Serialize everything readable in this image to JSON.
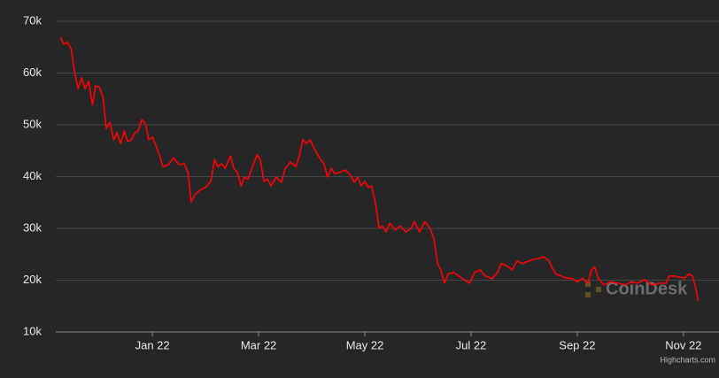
{
  "chart_data": {
    "type": "line",
    "x": [
      -1.73,
      -1.67,
      -1.6,
      -1.53,
      -1.47,
      -1.4,
      -1.33,
      -1.27,
      -1.2,
      -1.13,
      -1.07,
      -1,
      -0.93,
      -0.87,
      -0.8,
      -0.73,
      -0.67,
      -0.6,
      -0.53,
      -0.47,
      -0.4,
      -0.33,
      -0.27,
      -0.2,
      -0.13,
      -0.07,
      0,
      0.07,
      0.13,
      0.2,
      0.3,
      0.4,
      0.5,
      0.6,
      0.67,
      0.73,
      0.8,
      0.9,
      1,
      1.1,
      1.17,
      1.23,
      1.3,
      1.37,
      1.47,
      1.53,
      1.6,
      1.67,
      1.73,
      1.8,
      1.9,
      1.97,
      2.03,
      2.1,
      2.17,
      2.23,
      2.33,
      2.43,
      2.5,
      2.6,
      2.7,
      2.77,
      2.83,
      2.9,
      2.97,
      3.07,
      3.17,
      3.23,
      3.3,
      3.37,
      3.43,
      3.53,
      3.63,
      3.73,
      3.8,
      3.87,
      3.93,
      4,
      4.07,
      4.13,
      4.2,
      4.27,
      4.33,
      4.4,
      4.47,
      4.57,
      4.67,
      4.77,
      4.87,
      4.93,
      5.03,
      5.13,
      5.23,
      5.3,
      5.37,
      5.43,
      5.5,
      5.57,
      5.67,
      5.77,
      5.87,
      5.97,
      6.07,
      6.17,
      6.27,
      6.4,
      6.5,
      6.57,
      6.67,
      6.77,
      6.87,
      6.97,
      7.07,
      7.17,
      7.27,
      7.37,
      7.47,
      7.53,
      7.6,
      7.7,
      7.8,
      7.9,
      8,
      8.1,
      8.2,
      8.27,
      8.33,
      8.4,
      8.5,
      8.63,
      8.77,
      8.9,
      9.03,
      9.13,
      9.27,
      9.4,
      9.53,
      9.67,
      9.73,
      9.83,
      9.93,
      10.03,
      10.1,
      10.17,
      10.23,
      10.28
    ],
    "series": [
      {
        "color": "#ff0000",
        "values": [
          66.9,
          65.6,
          65.9,
          64.7,
          60.4,
          57.0,
          59.1,
          57.0,
          58.4,
          53.9,
          57.5,
          57.3,
          55.3,
          49.3,
          50.5,
          47.1,
          48.5,
          46.4,
          48.8,
          46.8,
          47.1,
          48.5,
          48.8,
          51.0,
          50.2,
          47.1,
          47.6,
          45.9,
          44.2,
          41.9,
          42.3,
          43.6,
          42.3,
          42.5,
          40.8,
          35.1,
          36.5,
          37.4,
          37.9,
          39.1,
          43.3,
          41.9,
          42.5,
          41.6,
          44.0,
          41.6,
          40.8,
          38.2,
          39.9,
          39.5,
          42.4,
          44.2,
          43.3,
          39.1,
          39.5,
          38.2,
          39.9,
          38.9,
          41.6,
          42.8,
          41.9,
          44.2,
          47.1,
          46.4,
          47.1,
          45.0,
          43.3,
          42.5,
          39.9,
          41.6,
          40.6,
          40.8,
          41.3,
          40.3,
          38.9,
          39.9,
          38.2,
          39.1,
          37.9,
          38.2,
          34.8,
          30.0,
          30.5,
          29.3,
          31.0,
          29.7,
          30.5,
          29.3,
          30.0,
          31.3,
          29.3,
          31.3,
          30.0,
          28.0,
          23.2,
          22.0,
          19.4,
          21.2,
          21.5,
          20.8,
          20.1,
          19.4,
          21.5,
          22.0,
          20.8,
          20.3,
          21.5,
          23.2,
          22.8,
          22.0,
          23.7,
          23.2,
          23.6,
          24.0,
          24.2,
          24.5,
          23.7,
          22.3,
          21.2,
          20.8,
          20.4,
          20.3,
          19.7,
          20.4,
          19.4,
          22.0,
          22.5,
          20.3,
          19.1,
          19.7,
          19.4,
          19.1,
          19.7,
          19.4,
          20.1,
          19.1,
          19.4,
          19.4,
          20.8,
          20.8,
          20.6,
          20.4,
          21.2,
          20.8,
          18.5,
          16.0
        ]
      }
    ],
    "xlim": [
      -1.82,
      10.67
    ],
    "xticks": [
      {
        "value": 0,
        "label": "Jan 22"
      },
      {
        "value": 2,
        "label": "Mar 22"
      },
      {
        "value": 4,
        "label": "May 22"
      },
      {
        "value": 6,
        "label": "Jul 22"
      },
      {
        "value": 8,
        "label": "Sep 22"
      },
      {
        "value": 10,
        "label": "Nov 22"
      }
    ],
    "ylim": [
      10,
      70
    ],
    "yticks": [
      {
        "value": 10,
        "label": "10k"
      },
      {
        "value": 20,
        "label": "20k"
      },
      {
        "value": 30,
        "label": "30k"
      },
      {
        "value": 40,
        "label": "40k"
      },
      {
        "value": 50,
        "label": "50k"
      },
      {
        "value": 60,
        "label": "60k"
      },
      {
        "value": 70,
        "label": "70k"
      }
    ],
    "grid": true,
    "watermark": "CoinDesk",
    "credits": "Highcharts.com"
  }
}
